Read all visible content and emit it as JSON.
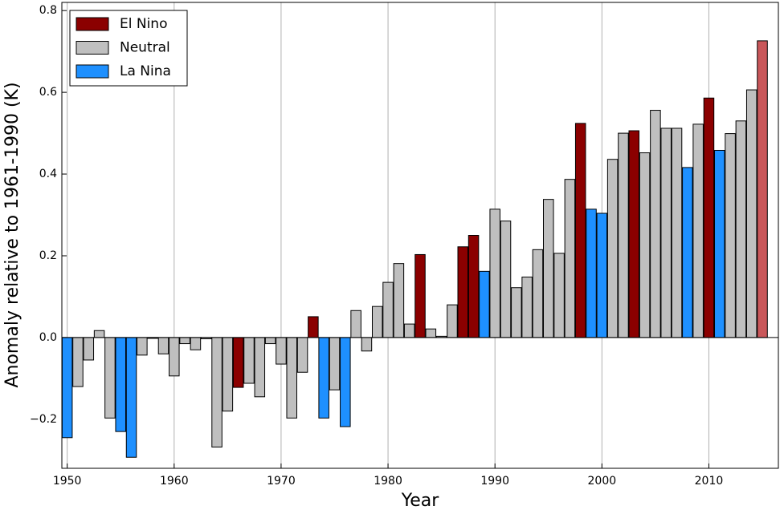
{
  "chart_data": {
    "type": "bar",
    "x_label": "Year",
    "y_label": "Anomaly relative to 1961-1990 (K)",
    "x": [
      1950,
      1951,
      1952,
      1953,
      1954,
      1955,
      1956,
      1957,
      1958,
      1959,
      1960,
      1961,
      1962,
      1963,
      1964,
      1965,
      1966,
      1967,
      1968,
      1969,
      1970,
      1971,
      1972,
      1973,
      1974,
      1975,
      1976,
      1977,
      1978,
      1979,
      1980,
      1981,
      1982,
      1983,
      1984,
      1985,
      1986,
      1987,
      1988,
      1989,
      1990,
      1991,
      1992,
      1993,
      1994,
      1995,
      1996,
      1997,
      1998,
      1999,
      2000,
      2001,
      2002,
      2003,
      2004,
      2005,
      2006,
      2007,
      2008,
      2009,
      2010,
      2011,
      2012,
      2013,
      2014,
      2015
    ],
    "series": [
      {
        "name": "El Nino",
        "color": "#8b0000",
        "last_value_color": "#c9575a",
        "values": [
          null,
          null,
          null,
          null,
          null,
          null,
          null,
          null,
          null,
          null,
          null,
          null,
          null,
          null,
          null,
          null,
          -0.122,
          null,
          null,
          null,
          null,
          null,
          null,
          0.051,
          null,
          null,
          null,
          null,
          null,
          null,
          null,
          null,
          null,
          0.203,
          null,
          null,
          null,
          0.222,
          0.25,
          null,
          null,
          null,
          null,
          null,
          null,
          null,
          null,
          null,
          0.524,
          null,
          null,
          null,
          null,
          0.506,
          null,
          null,
          null,
          null,
          null,
          null,
          0.586,
          null,
          null,
          null,
          null,
          0.726
        ]
      },
      {
        "name": "Neutral",
        "color": "#bfbfbf",
        "values": [
          null,
          -0.12,
          -0.055,
          0.017,
          -0.197,
          null,
          null,
          -0.043,
          -0.002,
          -0.04,
          -0.094,
          -0.015,
          -0.03,
          -0.003,
          -0.268,
          -0.18,
          null,
          -0.112,
          -0.145,
          -0.015,
          -0.065,
          -0.197,
          -0.085,
          null,
          null,
          -0.128,
          null,
          0.066,
          -0.033,
          0.076,
          0.135,
          0.181,
          0.033,
          null,
          0.021,
          0.003,
          0.08,
          null,
          null,
          null,
          0.314,
          0.285,
          0.122,
          0.148,
          0.215,
          0.338,
          0.206,
          0.387,
          null,
          null,
          null,
          0.436,
          0.5,
          null,
          0.452,
          0.556,
          0.512,
          0.512,
          null,
          0.522,
          null,
          null,
          0.499,
          0.53,
          0.606,
          null
        ]
      },
      {
        "name": "La Nina",
        "color": "#1e90ff",
        "values": [
          -0.245,
          null,
          null,
          null,
          null,
          -0.23,
          -0.293,
          null,
          null,
          null,
          null,
          null,
          null,
          null,
          null,
          null,
          null,
          null,
          null,
          null,
          null,
          null,
          null,
          null,
          -0.197,
          null,
          -0.218,
          null,
          null,
          null,
          null,
          null,
          null,
          null,
          null,
          null,
          null,
          null,
          null,
          0.162,
          null,
          null,
          null,
          null,
          null,
          null,
          null,
          null,
          null,
          0.314,
          0.304,
          null,
          null,
          null,
          null,
          null,
          null,
          null,
          0.416,
          null,
          null,
          0.458,
          null,
          null,
          null,
          null
        ]
      }
    ],
    "xlim": [
      1949.5,
      2016.5
    ],
    "xticks": [
      1950,
      1960,
      1970,
      1980,
      1990,
      2000,
      2010
    ],
    "ylim": [
      -0.32,
      0.82
    ],
    "yticks": [
      {
        "value": -0.2,
        "label": "−0.2"
      },
      {
        "value": 0,
        "label": "0.0"
      },
      0.2,
      0.4,
      0.6,
      0.8
    ],
    "x_grid": true,
    "legend": "upper left"
  }
}
